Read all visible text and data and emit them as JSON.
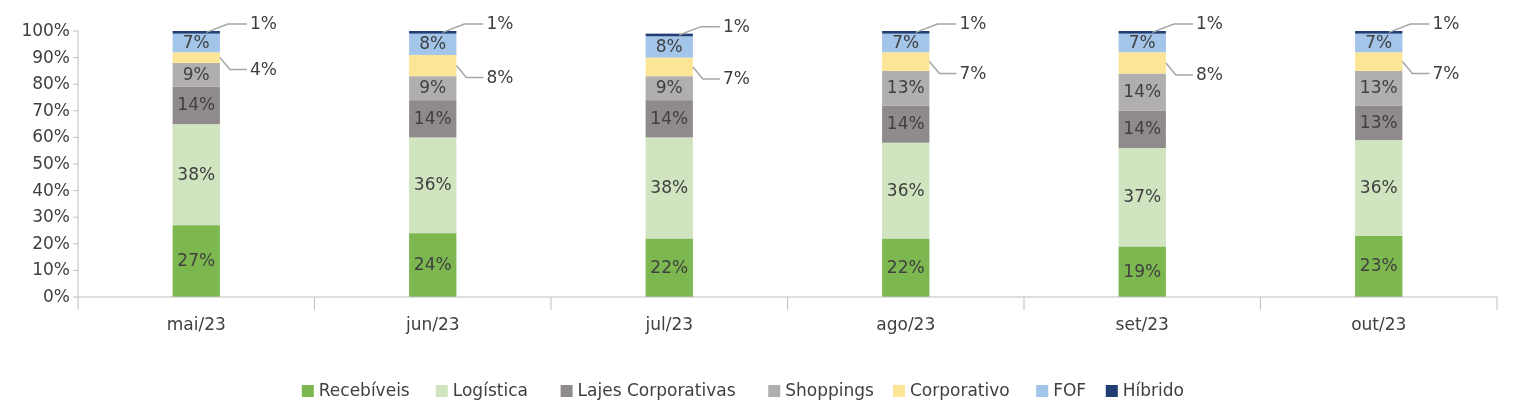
{
  "chart_data": {
    "type": "bar",
    "stacked": true,
    "categories": [
      "mai/23",
      "jun/23",
      "jul/23",
      "ago/23",
      "set/23",
      "out/23"
    ],
    "ylim": [
      0,
      100
    ],
    "yticks": [
      {
        "value": 0,
        "label": "0%"
      },
      {
        "value": 10,
        "label": "10%"
      },
      {
        "value": 20,
        "label": "20%"
      },
      {
        "value": 30,
        "label": "30%"
      },
      {
        "value": 40,
        "label": "40%"
      },
      {
        "value": 50,
        "label": "50%"
      },
      {
        "value": 60,
        "label": "60%"
      },
      {
        "value": 70,
        "label": "70%"
      },
      {
        "value": 80,
        "label": "80%"
      },
      {
        "value": 90,
        "label": "90%"
      },
      {
        "value": 100,
        "label": "100%"
      }
    ],
    "grid": false,
    "legend": "bottom",
    "series": [
      {
        "name": "Recebíveis",
        "color": "#7cb84f",
        "values": [
          27,
          24,
          22,
          22,
          19,
          23
        ],
        "value_labels": [
          "27%",
          "24%",
          "22%",
          "22%",
          "19%",
          "23%"
        ]
      },
      {
        "name": "Logística",
        "color": "#d0e4c0",
        "values": [
          38,
          36,
          38,
          36,
          37,
          36
        ],
        "value_labels": [
          "38%",
          "36%",
          "38%",
          "36%",
          "37%",
          "36%"
        ]
      },
      {
        "name": "Lajes Corporativas",
        "color": "#8f8b8b",
        "values": [
          14,
          14,
          14,
          14,
          14,
          13
        ],
        "value_labels": [
          "14%",
          "14%",
          "14%",
          "14%",
          "14%",
          "13%"
        ]
      },
      {
        "name": "Shoppings",
        "color": "#b1aeae",
        "values": [
          9,
          9,
          9,
          13,
          14,
          13
        ],
        "value_labels": [
          "9%",
          "9%",
          "9%",
          "13%",
          "14%",
          "13%"
        ]
      },
      {
        "name": "Corporativo",
        "color": "#fde597",
        "values": [
          4,
          8,
          7,
          7,
          8,
          7
        ],
        "value_labels": [
          "4%",
          "8%",
          "7%",
          "7%",
          "8%",
          "7%"
        ]
      },
      {
        "name": "FOF",
        "color": "#a2c5e9",
        "values": [
          7,
          8,
          8,
          7,
          7,
          7
        ],
        "value_labels": [
          "7%",
          "8%",
          "8%",
          "7%",
          "7%",
          "7%"
        ]
      },
      {
        "name": "Híbrido",
        "color": "#203d74",
        "values": [
          1,
          1,
          1,
          1,
          1,
          1
        ],
        "value_labels": [
          "1%",
          "1%",
          "1%",
          "1%",
          "1%",
          "1%"
        ]
      }
    ]
  }
}
